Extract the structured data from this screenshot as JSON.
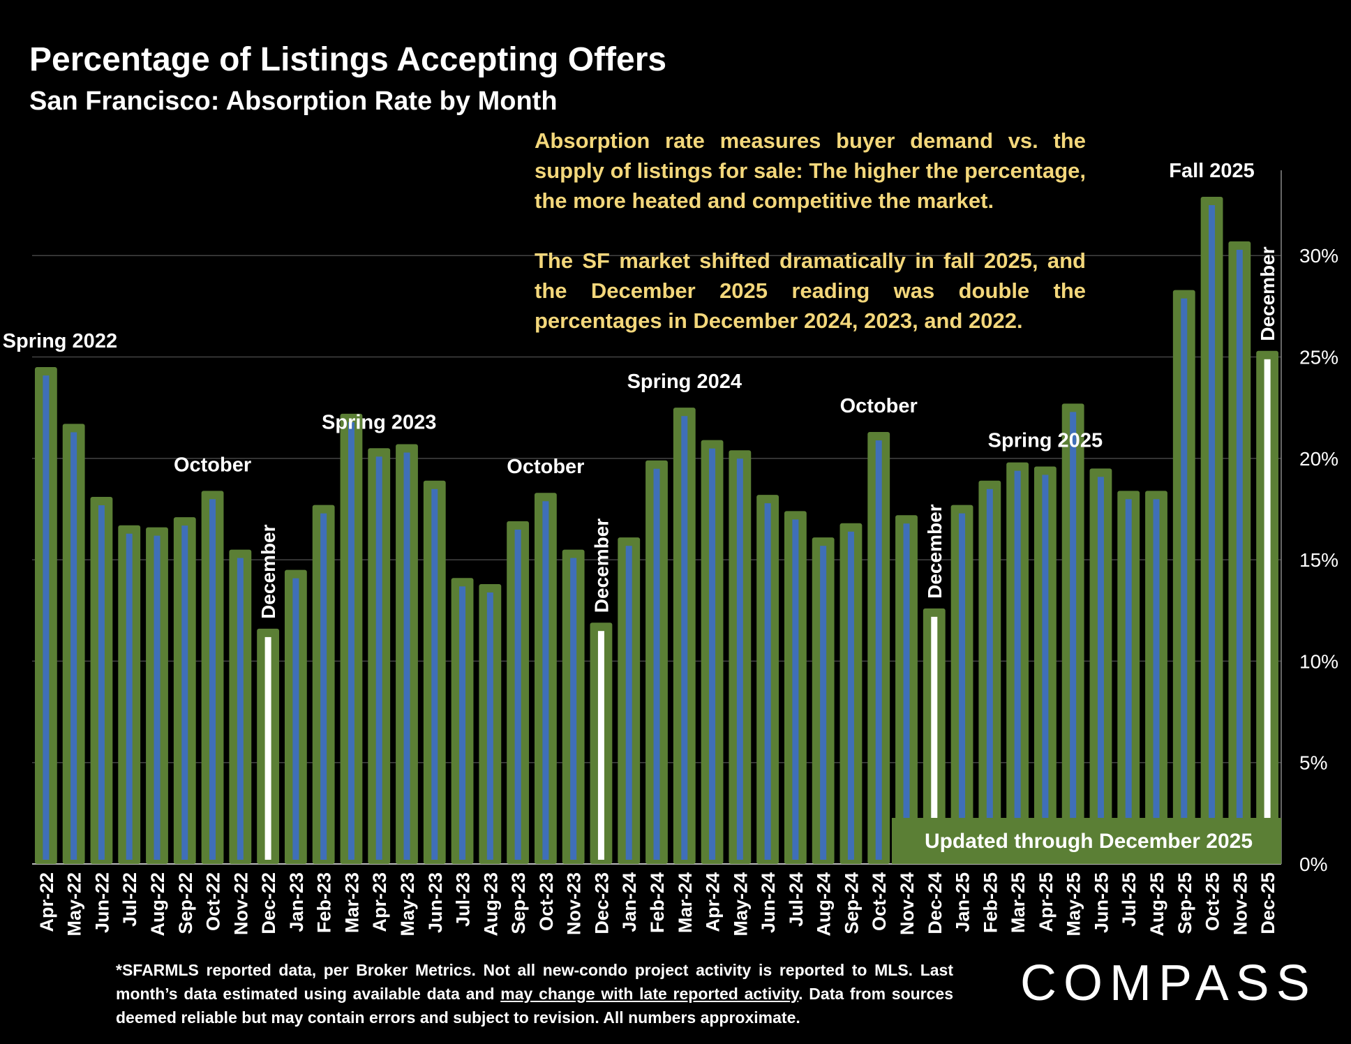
{
  "title": "Percentage of Listings Accepting Offers",
  "subtitle": "San Francisco:  Absorption Rate by Month",
  "note": {
    "p1": "Absorption rate measures buyer demand vs. the supply of listings for sale: The higher the percentage, the more heated and competitive the market.",
    "p2": "The SF market shifted dramatically in fall 2025, and the December 2025 reading was double the percentages in December 2024, 2023, and 2022."
  },
  "footnote": {
    "part1": "*SFARMLS reported data, per Broker Metrics. Not all new-condo project activity is reported to MLS. Last month’s data estimated using available data and ",
    "link": "may change with late reported activity",
    "part2": ". Data from sources deemed reliable but may contain errors and subject to revision. All numbers approximate."
  },
  "updated_badge": "Updated through December 2025",
  "logo": "COMPASS",
  "colors": {
    "bar_outer": "#5b7f35",
    "bar_inner": "#3f6fb8",
    "highlight": "#ffffff",
    "note_text": "#f3d77b",
    "grid": "#444444",
    "badge": "#5b7f35"
  },
  "chart_data": {
    "type": "bar",
    "categories": [
      "Apr-22",
      "May-22",
      "Jun-22",
      "Jul-22",
      "Aug-22",
      "Sep-22",
      "Oct-22",
      "Nov-22",
      "Dec-22",
      "Jan-23",
      "Feb-23",
      "Mar-23",
      "Apr-23",
      "May-23",
      "Jun-23",
      "Jul-23",
      "Aug-23",
      "Sep-23",
      "Oct-23",
      "Nov-23",
      "Dec-23",
      "Jan-24",
      "Feb-24",
      "Mar-24",
      "Apr-24",
      "May-24",
      "Jun-24",
      "Jul-24",
      "Aug-24",
      "Sep-24",
      "Oct-24",
      "Nov-24",
      "Dec-24",
      "Jan-25",
      "Feb-25",
      "Mar-25",
      "Apr-25",
      "May-25",
      "Jun-25",
      "Jul-25",
      "Aug-25",
      "Sep-25",
      "Oct-25",
      "Nov-25",
      "Dec-25"
    ],
    "values": [
      24.5,
      21.7,
      18.1,
      16.7,
      16.6,
      17.1,
      18.4,
      15.5,
      11.6,
      14.5,
      17.7,
      22.2,
      20.5,
      20.7,
      18.9,
      14.1,
      13.8,
      16.9,
      18.3,
      15.5,
      11.9,
      16.1,
      19.9,
      22.5,
      20.9,
      20.4,
      18.2,
      17.4,
      16.1,
      16.8,
      21.3,
      17.2,
      12.6,
      17.7,
      18.9,
      19.8,
      19.6,
      22.7,
      19.5,
      18.4,
      18.4,
      28.3,
      32.9,
      30.7,
      25.3
    ],
    "highlighted": [
      "Dec-22",
      "Dec-23",
      "Dec-24",
      "Dec-25"
    ],
    "ylim": [
      0,
      34
    ],
    "yticks": [
      "0%",
      "5%",
      "10%",
      "15%",
      "20%",
      "25%",
      "30%"
    ],
    "ytick_values": [
      0,
      5,
      10,
      15,
      20,
      25,
      30
    ],
    "grid": true,
    "annotations": [
      {
        "text": "Spring 2022",
        "category": "Apr-22"
      },
      {
        "text": "October",
        "category": "Oct-22"
      },
      {
        "text": "December",
        "category": "Dec-22",
        "vertical": true
      },
      {
        "text": "Spring 2023",
        "category": "Apr-23"
      },
      {
        "text": "October",
        "category": "Oct-23"
      },
      {
        "text": "December",
        "category": "Dec-23",
        "vertical": true
      },
      {
        "text": "Spring 2024",
        "category": "Mar-24"
      },
      {
        "text": "October",
        "category": "Oct-24"
      },
      {
        "text": "December",
        "category": "Dec-24",
        "vertical": true
      },
      {
        "text": "Spring 2025",
        "category": "Apr-25"
      },
      {
        "text": "Fall 2025",
        "category": "Oct-25"
      },
      {
        "text": "December",
        "category": "Dec-25",
        "vertical": true
      }
    ]
  }
}
